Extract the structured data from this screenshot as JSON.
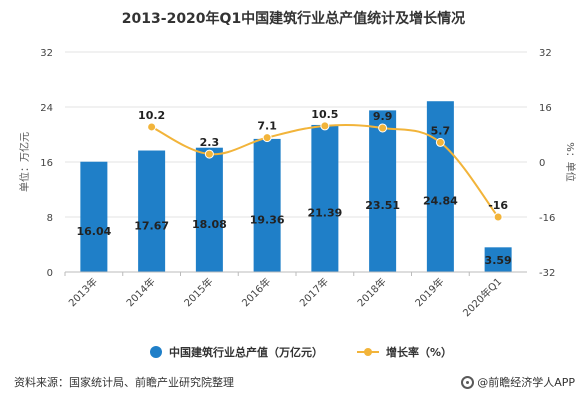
{
  "chart_data": {
    "type": "bar",
    "title": "2013-2020年Q1中国建筑行业总产值统计及增长情况",
    "categories": [
      "2013年",
      "2014年",
      "2015年",
      "2016年",
      "2017年",
      "2018年",
      "2019年",
      "2020年Q1"
    ],
    "series": [
      {
        "name": "中国建筑行业总产值（万亿元）",
        "type": "bar",
        "axis": "left",
        "color": "#1f7fc8",
        "values": [
          16.04,
          17.67,
          18.08,
          19.36,
          21.39,
          23.51,
          24.84,
          3.59
        ],
        "labels": [
          "16.04",
          "17.67",
          "18.08",
          "19.36",
          "21.39",
          "23.51",
          "24.84",
          "3.59"
        ]
      },
      {
        "name": "增长率（%）",
        "type": "line",
        "axis": "right",
        "color": "#f2b43a",
        "values": [
          null,
          10.2,
          2.3,
          7.1,
          10.5,
          9.9,
          5.7,
          -16
        ],
        "labels": [
          "",
          "10.2",
          "2.3",
          "7.1",
          "10.5",
          "9.9",
          "5.7",
          "-16"
        ]
      }
    ],
    "ylabel_left": "单位：万亿元",
    "ylabel_right": "%：单位",
    "ylim_left": [
      0,
      32
    ],
    "yticks_left": [
      "0",
      "8",
      "16",
      "24",
      "32"
    ],
    "ylim_right": [
      -32,
      32
    ],
    "yticks_right": [
      "-32",
      "-16",
      "0",
      "16",
      "32"
    ],
    "grid": true,
    "legend": "bottom",
    "source": "资料来源：国家统计局、前瞻产业研究院整理",
    "brand": "@前瞻经济学人APP"
  }
}
